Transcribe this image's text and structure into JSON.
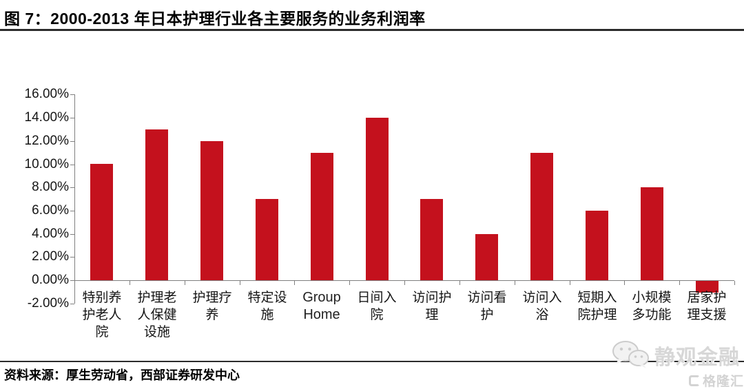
{
  "page": {
    "title": "图 7：2000-2013 年日本护理行业各主要服务的业务利润率",
    "source_note": "资料来源：厚生劳动省，西部证券研发中心"
  },
  "watermark": {
    "wechat_icon": "wechat-icon",
    "account_name": "静观金融",
    "logo_text": "格隆汇"
  },
  "chart_data": {
    "type": "bar",
    "title": "图 7：2000-2013 年日本护理行业各主要服务的业务利润率",
    "categories": [
      "特别养护老人院",
      "护理老人保健设施",
      "护理疗养",
      "特定设施",
      "Group Home",
      "日间入院",
      "访问护理",
      "访问看护",
      "访问入浴",
      "短期入院护理",
      "小规模多功能",
      "居家护理支援"
    ],
    "category_label_lines": [
      [
        "特别养",
        "护老人",
        "院"
      ],
      [
        "护理老",
        "人保健",
        "设施"
      ],
      [
        "护理疗",
        "养"
      ],
      [
        "特定设",
        "施"
      ],
      [
        "Group",
        "Home"
      ],
      [
        "日间入",
        "院"
      ],
      [
        "访问护",
        "理"
      ],
      [
        "访问看",
        "护"
      ],
      [
        "访问入",
        "浴"
      ],
      [
        "短期入",
        "院护理"
      ],
      [
        "小规模",
        "多功能"
      ],
      [
        "居家护",
        "理支援"
      ]
    ],
    "values": [
      10,
      13,
      12,
      7,
      11,
      14,
      7,
      4,
      11,
      6,
      8,
      -1
    ],
    "unit": "%",
    "xlabel": "",
    "ylabel": "",
    "ylim": [
      -2,
      16
    ],
    "ytick_step": 2,
    "ytick_labels": [
      "16.00%",
      "14.00%",
      "12.00%",
      "10.00%",
      "8.00%",
      "6.00%",
      "4.00%",
      "2.00%",
      "0.00%",
      "-2.00%"
    ],
    "bar_color": "#C4111D",
    "axis_color": "#7f7f7f",
    "grid": false,
    "legend": "none"
  }
}
